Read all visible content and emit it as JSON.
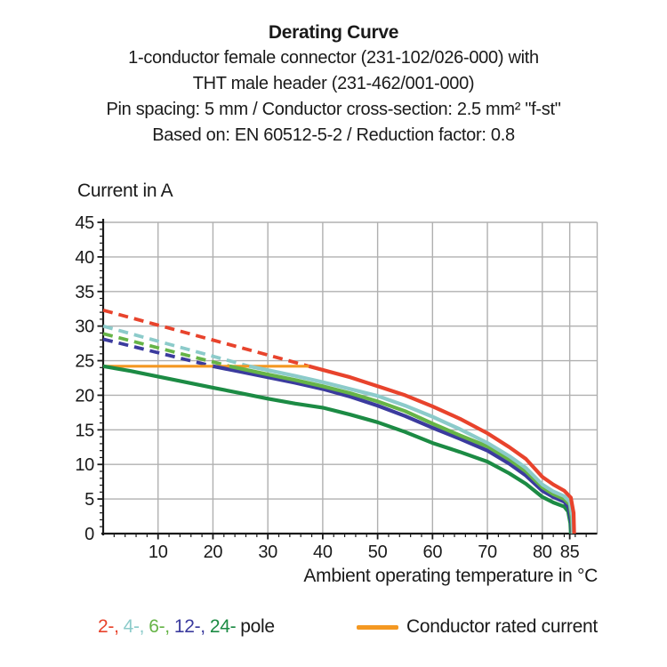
{
  "chart_data": {
    "type": "line",
    "title": "Derating Curve",
    "subtitle_lines": [
      "1-conductor female connector (231-102/026-000) with",
      "THT male header (231-462/001-000)",
      "Pin spacing: 5 mm / Conductor cross-section: 2.5 mm² \"f-st\"",
      "Based on: EN 60512-5-2 / Reduction factor: 0.8"
    ],
    "ylabel": "Current in A",
    "xlabel": "Ambient operating temperature in °C",
    "xlim": [
      0,
      90
    ],
    "ylim": [
      0,
      45
    ],
    "xticks": [
      10,
      20,
      30,
      40,
      50,
      60,
      70,
      80,
      85
    ],
    "yticks": [
      0,
      5,
      10,
      15,
      20,
      25,
      30,
      35,
      40,
      45
    ],
    "grid": true,
    "legend_position": "bottom",
    "conductor_rated_current_A": 24,
    "colors": {
      "grid": "#b0b0b0",
      "axis": "#1a1a1a",
      "text": "#1a1a1a"
    },
    "series": [
      {
        "name": "2-pole",
        "color": "#e8432c",
        "dashed": [
          [
            0,
            32.3
          ],
          [
            37.5,
            24.2
          ]
        ],
        "solid": [
          [
            37.5,
            24.2
          ],
          [
            45,
            22.6
          ],
          [
            50,
            21.3
          ],
          [
            55,
            20.0
          ],
          [
            60,
            18.4
          ],
          [
            65,
            16.6
          ],
          [
            70,
            14.5
          ],
          [
            74,
            12.5
          ],
          [
            77,
            10.8
          ],
          [
            80,
            8.2
          ],
          [
            82,
            7.1
          ],
          [
            84,
            6.2
          ],
          [
            85.2,
            5.2
          ],
          [
            85.7,
            3.0
          ],
          [
            85.8,
            0
          ]
        ]
      },
      {
        "name": "4-pole",
        "color": "#8ccbca",
        "dashed": [
          [
            0,
            30.0
          ],
          [
            26.6,
            24.2
          ]
        ],
        "solid": [
          [
            26.6,
            24.2
          ],
          [
            35,
            22.8
          ],
          [
            40,
            21.9
          ],
          [
            45,
            20.9
          ],
          [
            50,
            19.9
          ],
          [
            55,
            18.5
          ],
          [
            60,
            16.9
          ],
          [
            65,
            15.1
          ],
          [
            70,
            13.1
          ],
          [
            74,
            11.2
          ],
          [
            77,
            9.5
          ],
          [
            80,
            7.1
          ],
          [
            82,
            6.1
          ],
          [
            84,
            5.4
          ],
          [
            85,
            4.6
          ],
          [
            85.5,
            2.5
          ],
          [
            85.6,
            0
          ]
        ]
      },
      {
        "name": "6-pole",
        "color": "#66b447",
        "dashed": [
          [
            0,
            28.9
          ],
          [
            23,
            24.2
          ]
        ],
        "solid": [
          [
            23,
            24.2
          ],
          [
            30,
            23.0
          ],
          [
            35,
            22.2
          ],
          [
            40,
            21.3
          ],
          [
            45,
            20.3
          ],
          [
            50,
            19.1
          ],
          [
            55,
            17.7
          ],
          [
            60,
            15.9
          ],
          [
            65,
            14.2
          ],
          [
            70,
            12.6
          ],
          [
            74,
            10.7
          ],
          [
            77,
            9.0
          ],
          [
            80,
            6.7
          ],
          [
            82,
            5.7
          ],
          [
            84,
            5.0
          ],
          [
            85,
            4.2
          ],
          [
            85.4,
            2.0
          ],
          [
            85.5,
            0
          ]
        ]
      },
      {
        "name": "12-pole",
        "color": "#3b3b9e",
        "dashed": [
          [
            0,
            28.1
          ],
          [
            20,
            24.2
          ]
        ],
        "solid": [
          [
            20,
            24.2
          ],
          [
            25,
            23.4
          ],
          [
            30,
            22.6
          ],
          [
            35,
            21.8
          ],
          [
            40,
            20.9
          ],
          [
            45,
            19.8
          ],
          [
            50,
            18.5
          ],
          [
            55,
            17.0
          ],
          [
            60,
            15.3
          ],
          [
            65,
            13.7
          ],
          [
            70,
            12.0
          ],
          [
            74,
            10.1
          ],
          [
            77,
            8.4
          ],
          [
            80,
            6.2
          ],
          [
            82,
            5.3
          ],
          [
            84,
            4.6
          ],
          [
            84.8,
            3.8
          ],
          [
            85.3,
            1.5
          ],
          [
            85.4,
            0
          ]
        ]
      },
      {
        "name": "24-pole",
        "color": "#1c8b44",
        "solid": [
          [
            0,
            24.2
          ],
          [
            5,
            23.5
          ],
          [
            10,
            22.7
          ],
          [
            15,
            21.9
          ],
          [
            20,
            21.1
          ],
          [
            25,
            20.3
          ],
          [
            30,
            19.5
          ],
          [
            35,
            18.8
          ],
          [
            40,
            18.2
          ],
          [
            45,
            17.2
          ],
          [
            50,
            16.1
          ],
          [
            55,
            14.7
          ],
          [
            60,
            13.1
          ],
          [
            65,
            11.8
          ],
          [
            70,
            10.4
          ],
          [
            74,
            8.7
          ],
          [
            77,
            7.2
          ],
          [
            80,
            5.3
          ],
          [
            82,
            4.5
          ],
          [
            84,
            3.9
          ],
          [
            84.7,
            3.2
          ],
          [
            85.1,
            1.5
          ],
          [
            85.2,
            0
          ]
        ]
      },
      {
        "name": "Conductor rated current",
        "color": "#f49822",
        "width": 3.2,
        "solid": [
          [
            0,
            24.2
          ],
          [
            37.5,
            24.2
          ]
        ]
      }
    ]
  },
  "legend": {
    "poles": [
      {
        "label": "2-,",
        "color": "#e8432c"
      },
      {
        "label": "4-,",
        "color": "#8ccbca"
      },
      {
        "label": "6-,",
        "color": "#66b447"
      },
      {
        "label": "12-,",
        "color": "#3b3b9e"
      },
      {
        "label": "24-",
        "color": "#1c8b44"
      }
    ],
    "poles_suffix": "pole",
    "rated": {
      "label": "Conductor rated current",
      "color": "#f49822"
    }
  }
}
